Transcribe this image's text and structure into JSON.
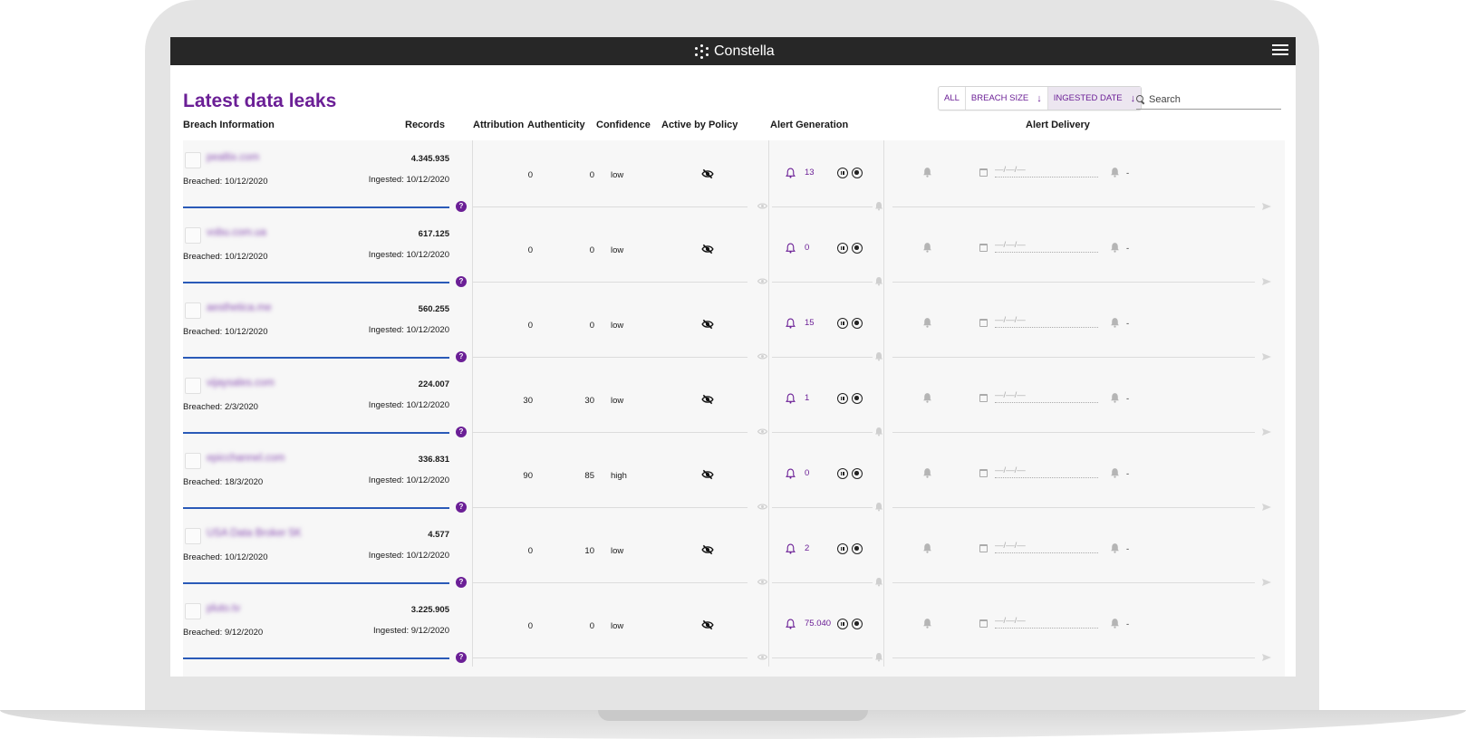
{
  "app": {
    "brand": "Constella"
  },
  "header": {
    "title": "Latest data leaks",
    "sort": {
      "all_label": "ALL",
      "breach_size_label": "BREACH SIZE",
      "ingested_date_label": "INGESTED DATE",
      "active": "INGESTED DATE"
    },
    "search_placeholder": "Search"
  },
  "columns": {
    "breach_info": "Breach Information",
    "records": "Records",
    "attribution": "Attribution",
    "authenticity": "Authenticity",
    "confidence": "Confidence",
    "active_by_policy": "Active by Policy",
    "alert_generation": "Alert Generation",
    "alert_delivery": "Alert Delivery"
  },
  "colors": {
    "accent": "#6b1f96",
    "progress": "#2a5ab8",
    "topbar": "#272727"
  },
  "rows": [
    {
      "domain": "pealtix.com",
      "breached": "Breached: 10/12/2020",
      "records": "4.345.935",
      "ingested": "Ingested: 10/12/2020",
      "attribution": "0",
      "authenticity": "0",
      "confidence": "low",
      "alerts": "13",
      "date_placeholder": "—/—/—",
      "delivery": "-"
    },
    {
      "domain": "vobu.com.ua",
      "breached": "Breached: 10/12/2020",
      "records": "617.125",
      "ingested": "Ingested: 10/12/2020",
      "attribution": "0",
      "authenticity": "0",
      "confidence": "low",
      "alerts": "0",
      "date_placeholder": "—/—/—",
      "delivery": "-"
    },
    {
      "domain": "aesthetica.me",
      "breached": "Breached: 10/12/2020",
      "records": "560.255",
      "ingested": "Ingested: 10/12/2020",
      "attribution": "0",
      "authenticity": "0",
      "confidence": "low",
      "alerts": "15",
      "date_placeholder": "—/—/—",
      "delivery": "-"
    },
    {
      "domain": "vijaysales.com",
      "breached": "Breached: 2/3/2020",
      "records": "224.007",
      "ingested": "Ingested: 10/12/2020",
      "attribution": "30",
      "authenticity": "30",
      "confidence": "low",
      "alerts": "1",
      "date_placeholder": "—/—/—",
      "delivery": "-"
    },
    {
      "domain": "epicchannel.com",
      "breached": "Breached: 18/3/2020",
      "records": "336.831",
      "ingested": "Ingested: 10/12/2020",
      "attribution": "90",
      "authenticity": "85",
      "confidence": "high",
      "alerts": "0",
      "date_placeholder": "—/—/—",
      "delivery": "-"
    },
    {
      "domain": "USA Data Broker 5K",
      "breached": "Breached: 10/12/2020",
      "records": "4.577",
      "ingested": "Ingested: 10/12/2020",
      "attribution": "0",
      "authenticity": "10",
      "confidence": "low",
      "alerts": "2",
      "date_placeholder": "—/—/—",
      "delivery": "-"
    },
    {
      "domain": "pluto.tv",
      "breached": "Breached: 9/12/2020",
      "records": "3.225.905",
      "ingested": "Ingested: 9/12/2020",
      "attribution": "0",
      "authenticity": "0",
      "confidence": "low",
      "alerts": "75.040",
      "date_placeholder": "—/—/—",
      "delivery": "-"
    }
  ]
}
